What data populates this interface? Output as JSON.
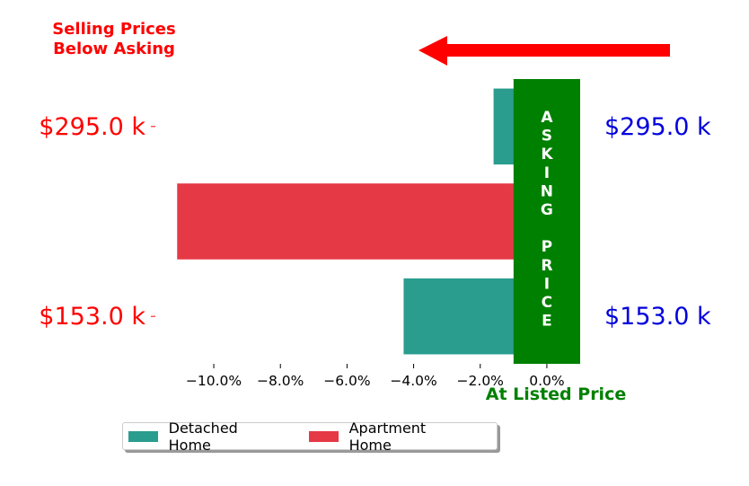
{
  "chart_data": {
    "type": "bar",
    "orientation": "horizontal",
    "xlim": [
      -11.7,
      1.0
    ],
    "ylim": [
      -0.5,
      2.5
    ],
    "x_ticks": [
      -10,
      -8,
      -6,
      -4,
      -2,
      0
    ],
    "x_tick_labels": [
      "−10.0%",
      "−8.0%",
      "−6.0%",
      "−4.0%",
      "−2.0%",
      "0.0%"
    ],
    "series": [
      {
        "name": "Detached Home",
        "color": "#2a9d8f",
        "points": [
          {
            "row": 0,
            "value": -4.3
          },
          {
            "row": 2,
            "value": -1.6
          }
        ]
      },
      {
        "name": "Apartment Home",
        "color": "#e63946",
        "points": [
          {
            "row": 1,
            "value": -11.1
          }
        ]
      }
    ],
    "left_labels": [
      {
        "row": 0,
        "text": "$153.0 k"
      },
      {
        "row": 2,
        "text": "$295.0 k"
      }
    ],
    "right_labels": [
      {
        "row": 0,
        "text": "$153.0 k"
      },
      {
        "row": 2,
        "text": "$295.0 k"
      }
    ],
    "left_label_color": "#ff0000",
    "right_label_color": "#0000dd",
    "annotation_top": [
      "Selling Prices",
      "Below Asking"
    ],
    "annotation_top_color": "#ff0000",
    "asking_band": {
      "letters": [
        "A",
        "S",
        "K",
        "I",
        "N",
        "G",
        "",
        "P",
        "R",
        "I",
        "C",
        "E"
      ],
      "x_range": [
        -1.0,
        1.0
      ],
      "color": "#008000"
    },
    "xlabel": "At Listed Price",
    "xlabel_color": "#008000",
    "arrow_color": "#ff0000",
    "legend_position": "lower-center"
  }
}
